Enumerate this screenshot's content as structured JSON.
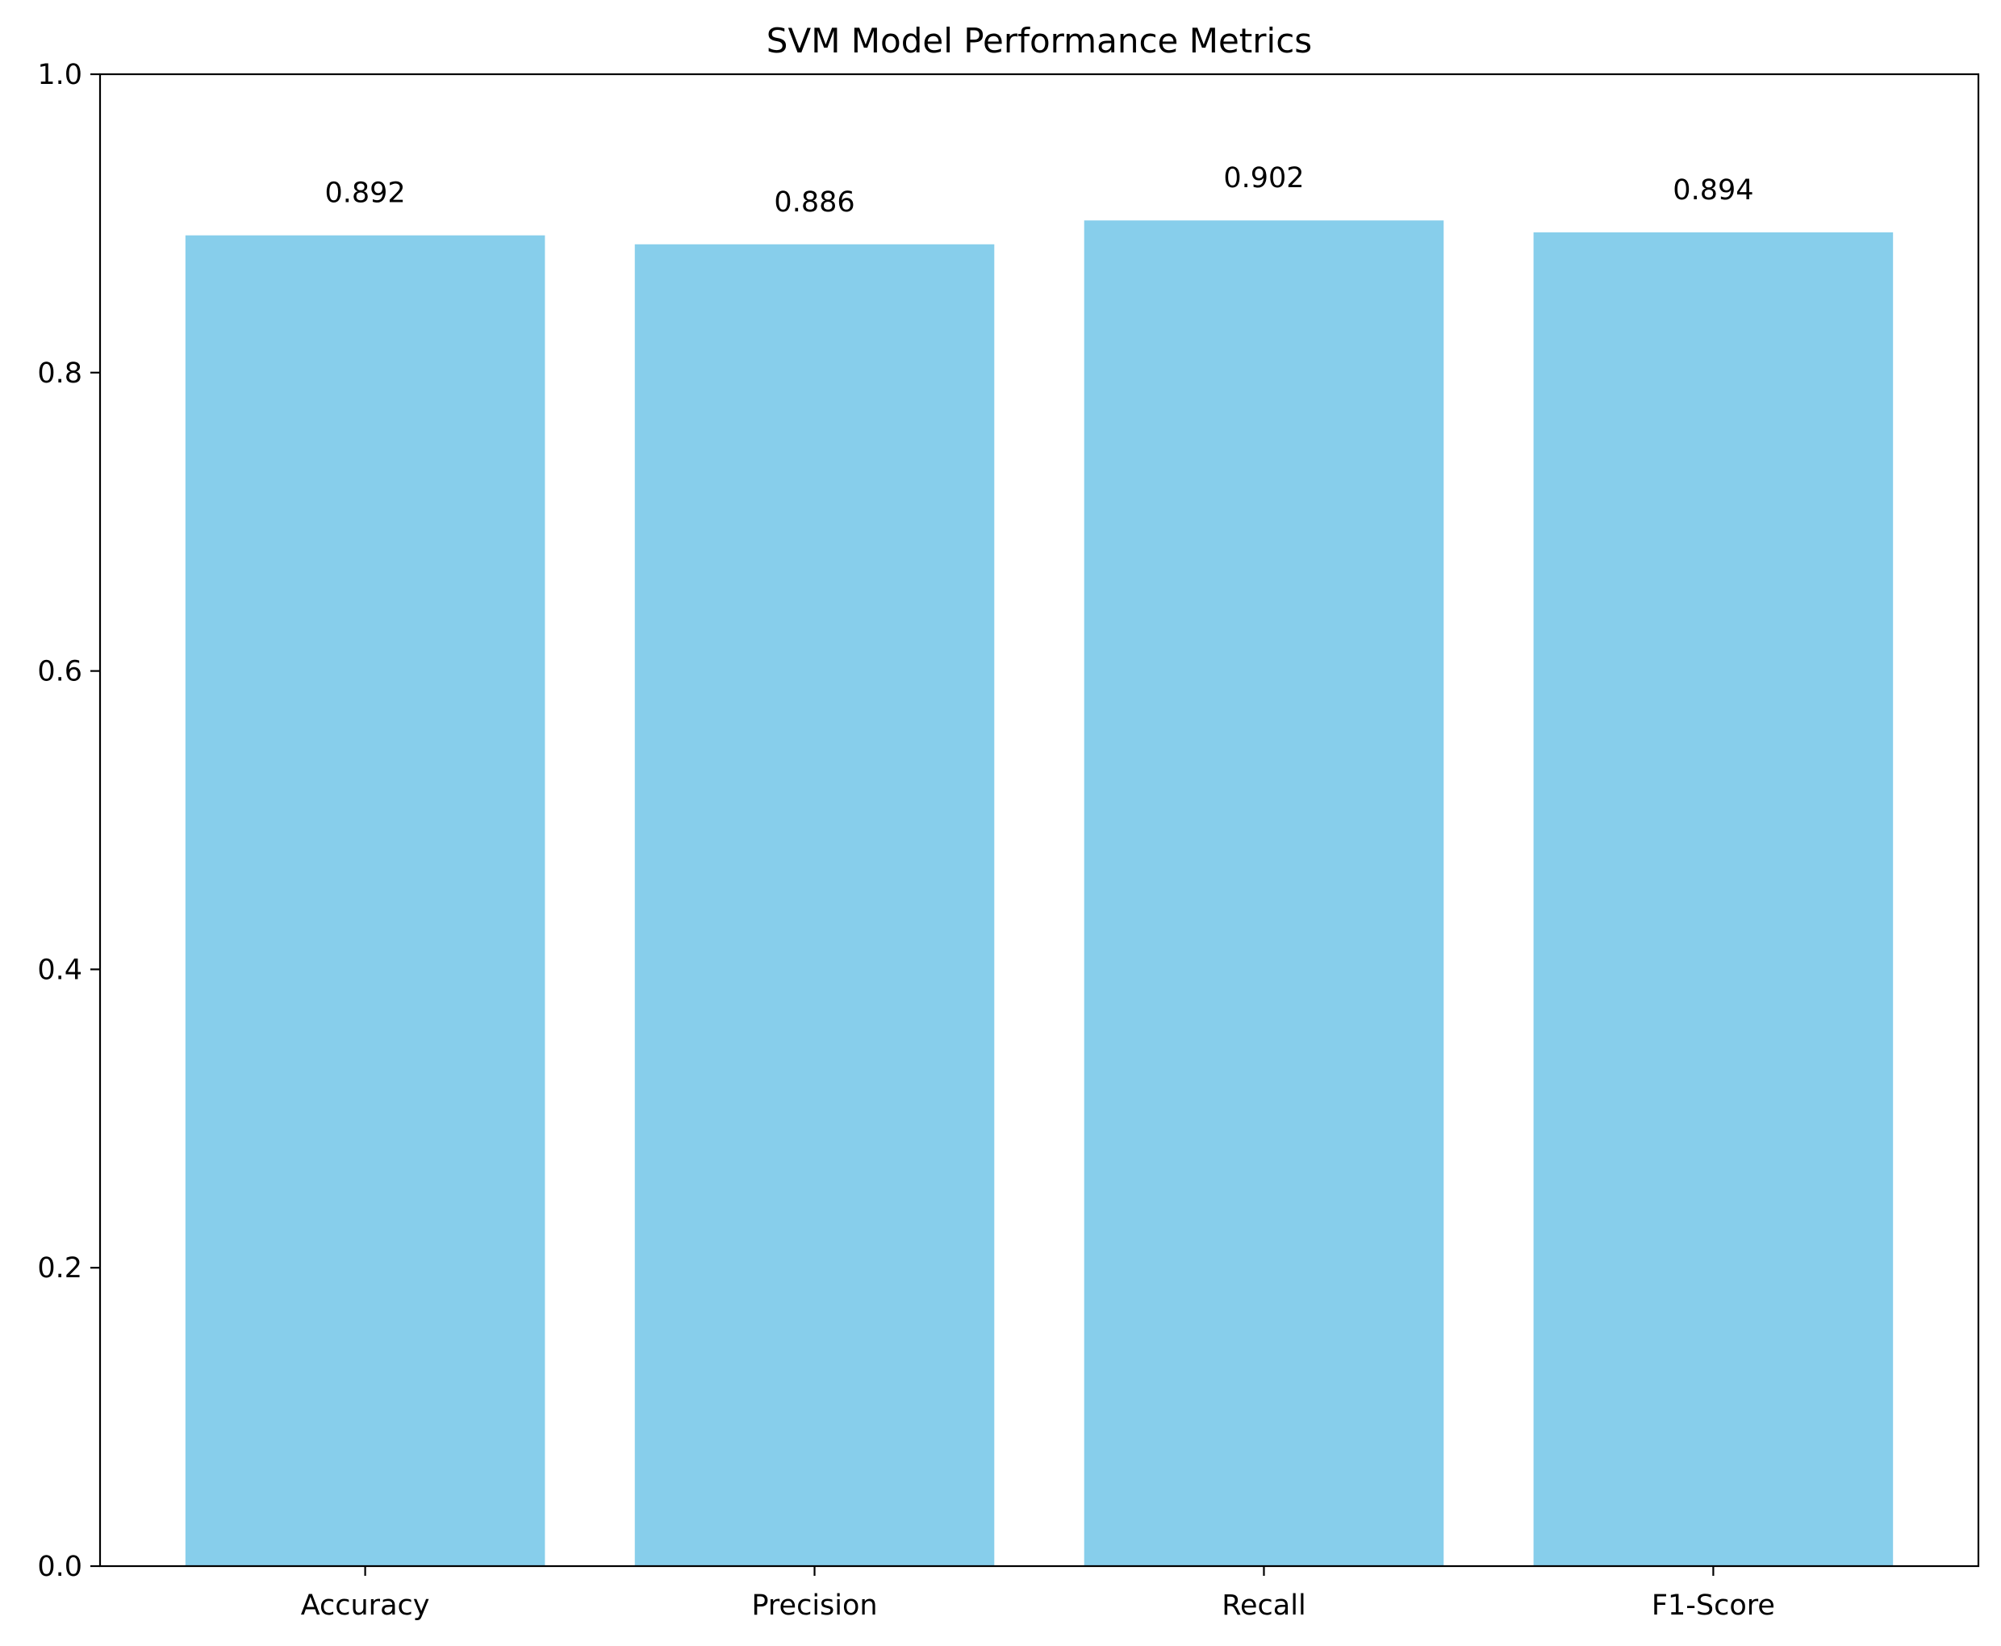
{
  "chart_data": {
    "type": "bar",
    "title": "SVM Model Performance Metrics",
    "xlabel": "",
    "ylabel": "",
    "categories": [
      "Accuracy",
      "Precision",
      "Recall",
      "F1-Score"
    ],
    "values": [
      0.892,
      0.886,
      0.902,
      0.894
    ],
    "data_labels": [
      "0.892",
      "0.886",
      "0.902",
      "0.894"
    ],
    "ylim": [
      0.0,
      1.0
    ],
    "yticks": [
      0.0,
      0.2,
      0.4,
      0.6,
      0.8,
      1.0
    ],
    "ytick_labels": [
      "0.0",
      "0.2",
      "0.4",
      "0.6",
      "0.8",
      "1.0"
    ],
    "grid": false,
    "legend": "none",
    "bar_color": "#87ceeb",
    "axis_color": "#000000"
  }
}
